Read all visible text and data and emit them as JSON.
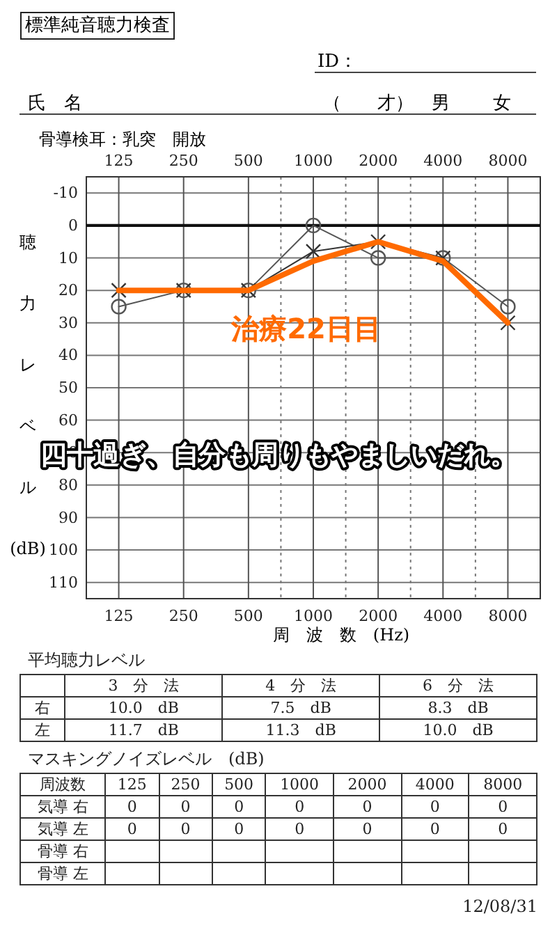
{
  "chart_data": [
    {
      "type": "line",
      "title": "標準純音聴力検査",
      "subtitle": "骨導検耳：乳突　開放",
      "xlabel": "周　波　数　(Hz)",
      "ylabel": "聴力レベル(dB)",
      "categories": [
        "125",
        "250",
        "500",
        "1000",
        "2000",
        "4000",
        "8000"
      ],
      "ylim": [
        115,
        -15
      ],
      "yticks": [
        -10,
        0,
        10,
        20,
        30,
        40,
        50,
        60,
        70,
        80,
        90,
        100,
        110
      ],
      "grid": true,
      "line_style": "solid",
      "series": [
        {
          "color": "#555555",
          "marker": "circle",
          "values": [
            25,
            20,
            20,
            0,
            10,
            10,
            25
          ]
        },
        {
          "color": "#333333",
          "marker": "cross",
          "values": [
            20,
            20,
            20,
            8,
            5,
            10,
            30
          ]
        },
        {
          "color": "#ff6a00",
          "marker": "none",
          "values": [
            20,
            20,
            20,
            11,
            5,
            11,
            30
          ]
        }
      ],
      "ref_lines": [
        {
          "axis": "y",
          "value": 0,
          "color": "#111111"
        }
      ],
      "annotations": [
        "ID：",
        "氏　名",
        "（　　才）",
        "男",
        "女",
        "治療22日目",
        "四十過ぎ、自分も周りもやましいだれ。"
      ]
    },
    {
      "type": "other",
      "title": "平均聴力レベル",
      "annotations": [
        "3　分　法  4　分　法  6　分　法",
        "右  10.0　dB  7.5　dB  8.3　dB",
        "左  11.7　dB  11.3　dB  10.0　dB"
      ]
    },
    {
      "type": "other",
      "title": "マスキングノイズレベル　(dB)",
      "subtitle": "12/08/31",
      "annotations": [
        "周波数  125  250  500  1000  2000  4000  8000",
        "気導 右  0  0  0  0  0  0  0",
        "気導 左  0  0  0  0  0  0  0",
        "骨導 右",
        "骨導 左"
      ]
    }
  ]
}
